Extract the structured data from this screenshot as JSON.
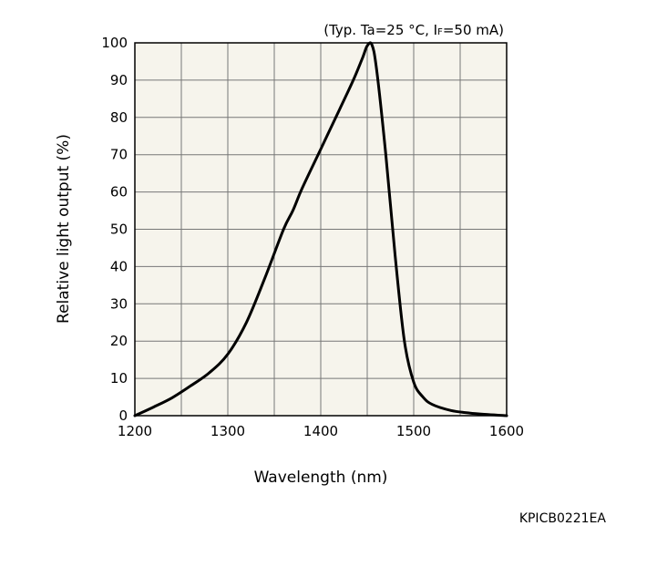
{
  "chart_data": {
    "type": "line",
    "conditions": {
      "prefix": "(Typ. Ta=25 °C, I",
      "subscript": "F",
      "suffix": "=50 mA)"
    },
    "xlabel": "Wavelength (nm)",
    "ylabel": "Relative light output (%)",
    "xlim": [
      1200,
      1600
    ],
    "ylim": [
      0,
      100
    ],
    "x_ticks": [
      1200,
      1300,
      1400,
      1500,
      1600
    ],
    "y_ticks": [
      0,
      10,
      20,
      30,
      40,
      50,
      60,
      70,
      80,
      90,
      100
    ],
    "x_grid": [
      1200,
      1250,
      1300,
      1350,
      1400,
      1450,
      1500,
      1550,
      1600
    ],
    "grid": true,
    "background_color": "#f6f4ec",
    "grid_color": "#777777",
    "line_color": "#000000",
    "series": [
      {
        "x": [
          1200,
          1220,
          1240,
          1260,
          1280,
          1300,
          1320,
          1340,
          1360,
          1370,
          1380,
          1400,
          1420,
          1435,
          1445,
          1450,
          1455,
          1460,
          1470,
          1480,
          1490,
          1500,
          1510,
          1520,
          1540,
          1560,
          1580,
          1600
        ],
        "y": [
          0,
          2.3,
          4.8,
          8,
          11.5,
          16.5,
          25,
          37,
          50,
          55,
          61,
          71.5,
          82,
          90,
          96,
          99.2,
          99.5,
          93,
          70,
          43,
          20,
          9,
          5,
          3,
          1.4,
          0.7,
          0.3,
          0
        ]
      }
    ]
  },
  "figure_code": "KPICB0221EA"
}
